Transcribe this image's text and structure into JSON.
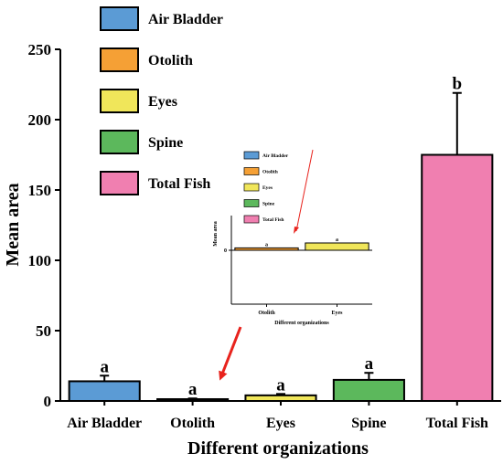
{
  "chart_data": [
    {
      "type": "bar",
      "ylabel": "Mean area",
      "xlabel": "Different organizations",
      "ylim": [
        0,
        250
      ],
      "yticks": [
        0,
        50,
        100,
        150,
        200,
        250
      ],
      "categories": [
        "Air Bladder",
        "Otolith",
        "Eyes",
        "Spine",
        "Total Fish"
      ],
      "values": [
        14,
        1.3,
        4,
        15,
        175
      ],
      "errors": [
        4,
        0.5,
        1,
        5,
        44
      ],
      "letters": [
        "a",
        "a",
        "a",
        "a",
        "b"
      ],
      "colors": [
        "#5b9bd5",
        "#f5a035",
        "#f0e65a",
        "#5cb85c",
        "#f07fb0"
      ],
      "legend": {
        "placement": "top-left",
        "items": [
          {
            "label": "Air Bladder",
            "color": "#5b9bd5"
          },
          {
            "label": "Otolith",
            "color": "#f5a035"
          },
          {
            "label": "Eyes",
            "color": "#f0e65a"
          },
          {
            "label": "Spine",
            "color": "#5cb85c"
          },
          {
            "label": "Total Fish",
            "color": "#f07fb0"
          }
        ]
      },
      "annotation": "red arrow pointing to Otolith bar"
    },
    {
      "type": "bar",
      "inset": true,
      "ylabel": "Mean area",
      "xlabel": "Different organizations",
      "yticks": [
        0
      ],
      "categories": [
        "Otolith",
        "Eyes"
      ],
      "values": [
        1.3,
        4
      ],
      "letters": [
        "a",
        "a"
      ],
      "colors": [
        "#f5a035",
        "#f0e65a"
      ],
      "legend": {
        "placement": "top-left",
        "items": [
          {
            "label": "Air Bladder",
            "color": "#5b9bd5"
          },
          {
            "label": "Otolith",
            "color": "#f5a035"
          },
          {
            "label": "Eyes",
            "color": "#f0e65a"
          },
          {
            "label": "Spine",
            "color": "#5cb85c"
          },
          {
            "label": "Total Fish",
            "color": "#f07fb0"
          }
        ]
      },
      "annotation": "thin red arrow pointing to Otolith bar"
    }
  ]
}
